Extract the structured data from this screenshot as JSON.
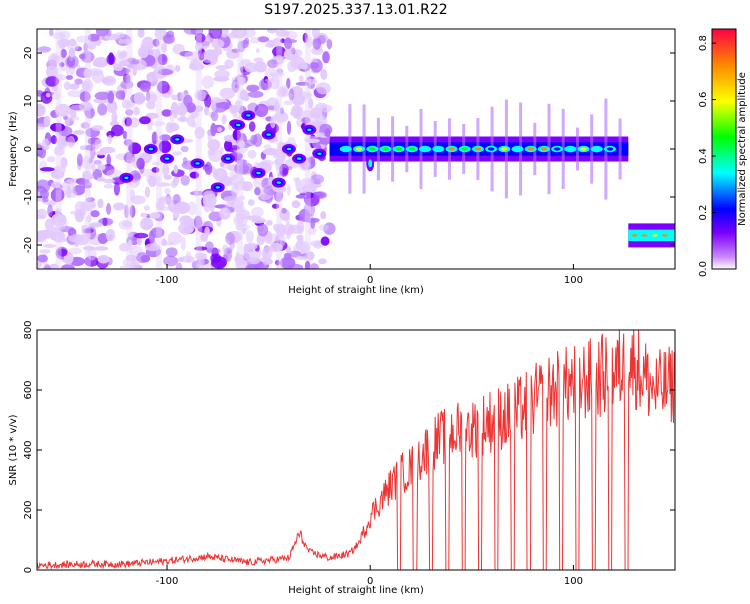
{
  "title": "S197.2025.337.13.01.R22",
  "chart_data": [
    {
      "type": "heatmap",
      "title": "S197.2025.337.13.01.R22",
      "xlabel": "Height of straight line (km)",
      "ylabel": "Frequency (Hz)",
      "xlim": [
        -164,
        150
      ],
      "ylim": [
        -25,
        25
      ],
      "xticks": [
        -100,
        0,
        100
      ],
      "yticks": [
        -20,
        -10,
        0,
        10,
        20
      ],
      "colorbar": {
        "label": "Normalized spectral amplitude",
        "range": [
          0,
          0.85
        ],
        "ticks": [
          0.0,
          0.2,
          0.4,
          0.6,
          0.8
        ],
        "colors": [
          "#ffffff",
          "#cc88ff",
          "#7a00ff",
          "#0000ff",
          "#00ffff",
          "#00ff00",
          "#ffff00",
          "#ff8800",
          "#ff0044"
        ]
      },
      "features": [
        {
          "name": "scattered noise blobs",
          "x_range": [
            -164,
            -20
          ],
          "freq_range": [
            -25,
            25
          ],
          "amplitude": 0.1
        },
        {
          "name": "main carrier line",
          "x_range": [
            -20,
            127
          ],
          "freq": 0,
          "amplitude_peak": 0.8
        },
        {
          "name": "offset carrier line",
          "x_range": [
            127,
            150
          ],
          "freq": -18,
          "amplitude_peak": 0.75
        }
      ]
    },
    {
      "type": "line",
      "xlabel": "Height of straight line (km)",
      "ylabel": "SNR (10 * v/v)",
      "xlim": [
        -164,
        150
      ],
      "ylim": [
        0,
        800
      ],
      "xticks": [
        -100,
        0,
        100
      ],
      "yticks": [
        0,
        200,
        400,
        600,
        800
      ],
      "series": [
        {
          "name": "SNR",
          "color": "#ee3333",
          "x": [
            -164,
            -140,
            -120,
            -100,
            -80,
            -60,
            -40,
            -35,
            -30,
            -20,
            -10,
            -5,
            0,
            5,
            10,
            15,
            20,
            30,
            40,
            50,
            60,
            70,
            80,
            90,
            100,
            110,
            120,
            130,
            140,
            150
          ],
          "values": [
            15,
            20,
            20,
            30,
            45,
            25,
            40,
            120,
            60,
            40,
            55,
            95,
            180,
            230,
            280,
            320,
            340,
            420,
            460,
            470,
            500,
            520,
            560,
            600,
            620,
            640,
            660,
            690,
            600,
            620
          ]
        }
      ],
      "dropouts_x": [
        14,
        22,
        30,
        38,
        46,
        54,
        62,
        70,
        78,
        86,
        94,
        102,
        110,
        118,
        126
      ]
    }
  ]
}
